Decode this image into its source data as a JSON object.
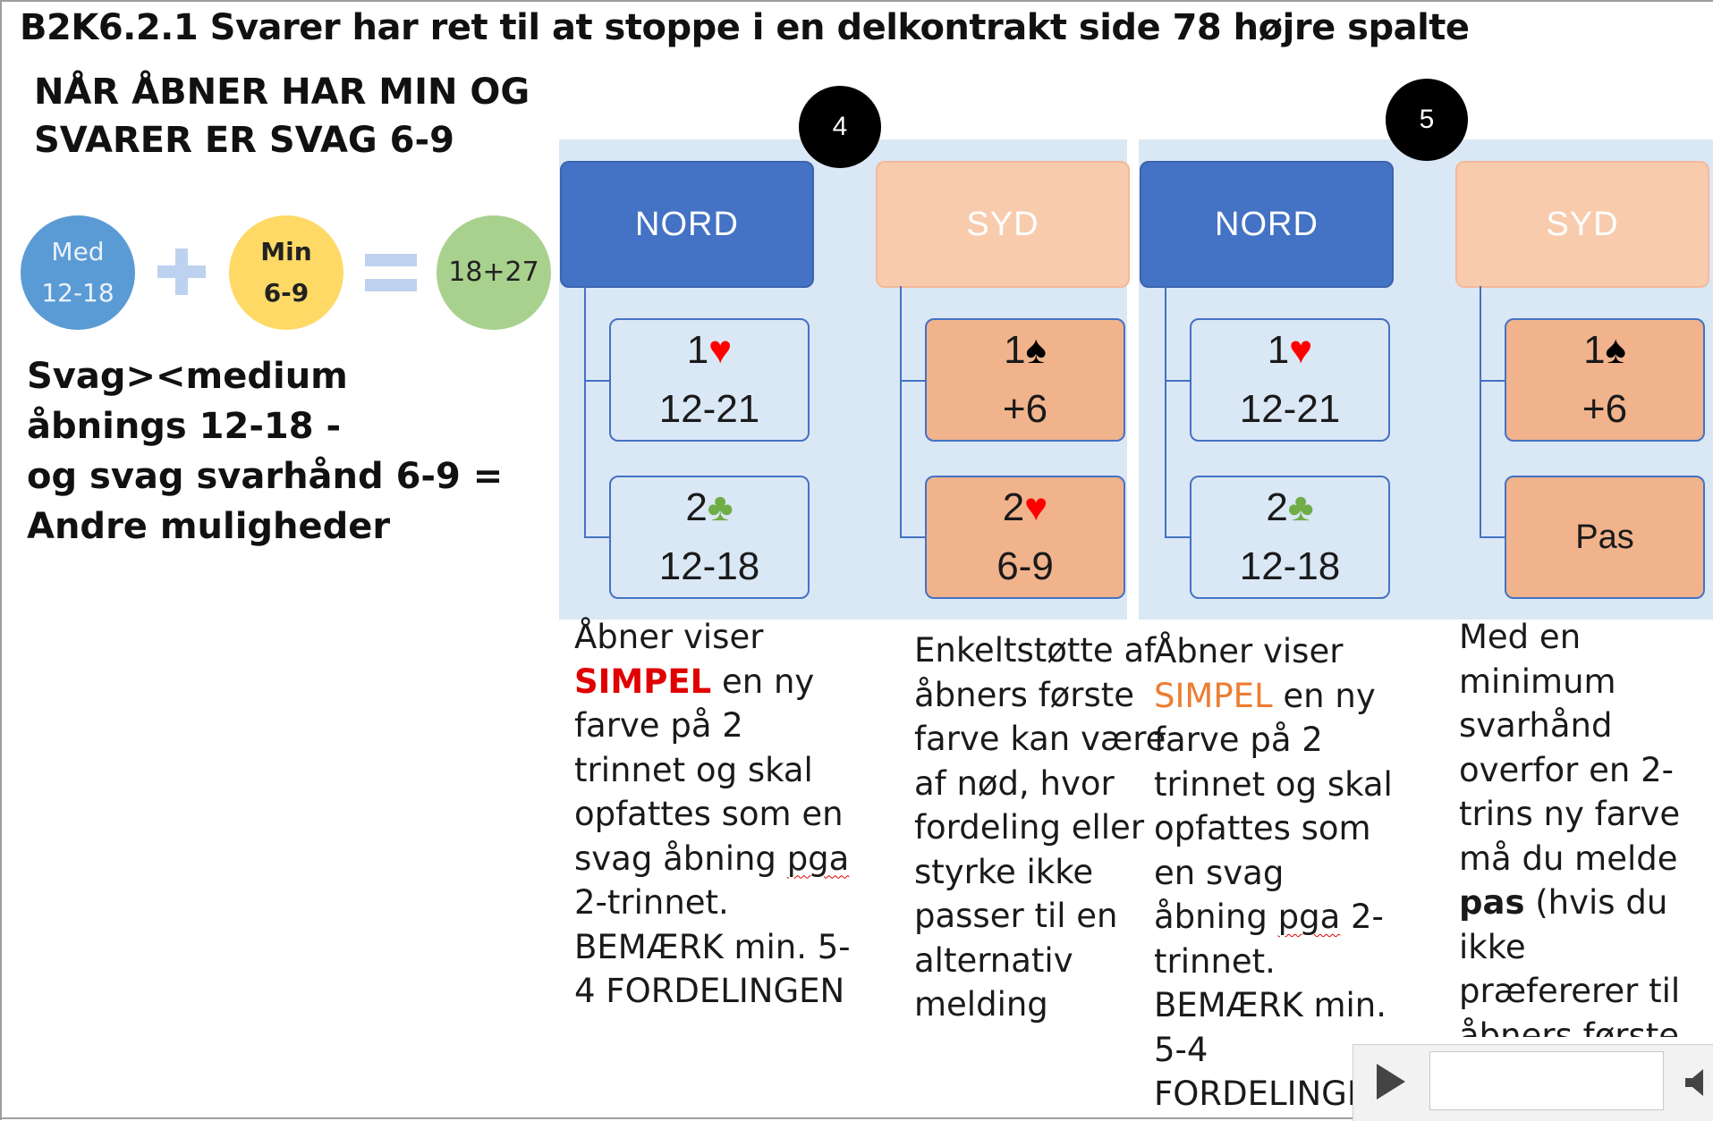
{
  "title": "B2K6.2.1 Svarer har ret til at stoppe i en delkontrakt side 78 højre spalte",
  "heading": {
    "line1": "NÅR ÅBNER HAR MIN OG",
    "line2": "SVARER ER SVAG 6-9"
  },
  "equation": {
    "med_label": "Med",
    "med_range": "12-18",
    "min_label": "Min",
    "min_range": "6-9",
    "sum": "18+27"
  },
  "summary": {
    "line1": "Svag><medium",
    "line2": "åbnings 12-18 -",
    "line3": "og svag svarhånd 6-9 =",
    "line4": "Andre muligheder"
  },
  "diagram4": {
    "badge": "4",
    "nord": {
      "label": "NORD",
      "bids": [
        {
          "level": "1",
          "suit": "♥",
          "range": "12-21"
        },
        {
          "level": "2",
          "suit": "♣",
          "range": "12-18"
        }
      ]
    },
    "syd": {
      "label": "SYD",
      "bids": [
        {
          "level": "1",
          "suit": "♠",
          "range": "+6"
        },
        {
          "level": "2",
          "suit": "♥",
          "range": "6-9"
        }
      ]
    }
  },
  "diagram5": {
    "badge": "5",
    "nord": {
      "label": "NORD",
      "bids": [
        {
          "level": "1",
          "suit": "♥",
          "range": "12-21"
        },
        {
          "level": "2",
          "suit": "♣",
          "range": "12-18"
        }
      ]
    },
    "syd": {
      "label": "SYD",
      "bids": [
        {
          "level": "1",
          "suit": "♠",
          "range": "+6"
        },
        {
          "text": "Pas"
        }
      ]
    }
  },
  "desc1": {
    "l1": "Åbner viser",
    "highlight": "SIMPEL",
    "l2_rest": " en ny",
    "l3": "farve på 2",
    "l4": "trinnet og skal",
    "l5": "opfattes som en",
    "l6_a": "svag åbning ",
    "l6_b": "pga",
    "l7": "2-trinnet.",
    "l8": "BEMÆRK min. 5-",
    "l9": "4 FORDELINGEN"
  },
  "desc2": {
    "l1": "Enkeltstøtte af",
    "l2": "åbners første",
    "l3": "farve kan være",
    "l4": "af nød, hvor",
    "l5": "fordeling eller",
    "l6": "styrke ikke",
    "l7": "passer til en",
    "l8": "alternativ",
    "l9": "melding"
  },
  "desc3": {
    "l1": "Åbner viser",
    "highlight": "SIMPEL",
    "l2_rest": " en ny",
    "l3": "farve på 2",
    "l4": "trinnet og skal",
    "l5": "opfattes som",
    "l6": "en svag",
    "l7_a": "åbning ",
    "l7_b": "pga",
    "l7_c": " 2-",
    "l8": "trinnet.",
    "l9": "BEMÆRK min.",
    "l10": "5-4",
    "l11": "FORDELINGEN"
  },
  "desc4": {
    "l1": "Med en",
    "l2": "minimum",
    "l3": "svarhånd",
    "l4": "overfor en 2-",
    "l5": "trins ny farve",
    "l6": "må du melde",
    "l7_bold": "pas",
    "l7_rest": " (hvis du",
    "l8": "ikke",
    "l9": "præfererer til",
    "l10": "åbners første"
  },
  "colors": {
    "nord_box": "#4472c4",
    "syd_box": "#f8cbad",
    "syd_bid_box": "#f0b38c",
    "panel": "#dae7f5",
    "med_circle": "#5b9bd5",
    "min_circle": "#ffd966",
    "sum_circle": "#a9d18e",
    "highlight_red": "#e00000",
    "highlight_orange": "#ed7d31"
  },
  "media_controls": {
    "play_icon": "play-icon",
    "volume_icon": "volume-icon"
  }
}
